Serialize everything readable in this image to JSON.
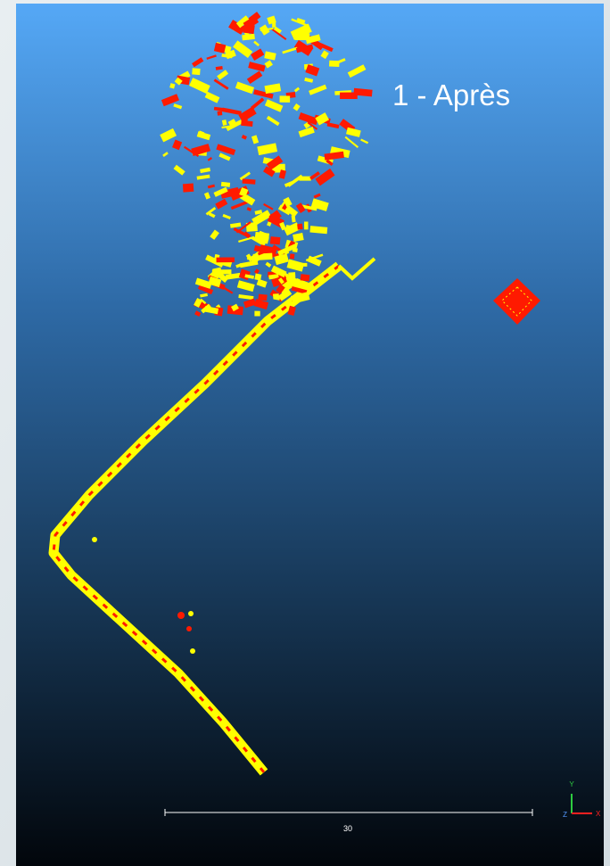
{
  "viewport": {
    "label": "1 - Après",
    "scale_bar": {
      "label": "30"
    },
    "axes": {
      "y": "Y",
      "z": "Z",
      "x": "X"
    }
  }
}
